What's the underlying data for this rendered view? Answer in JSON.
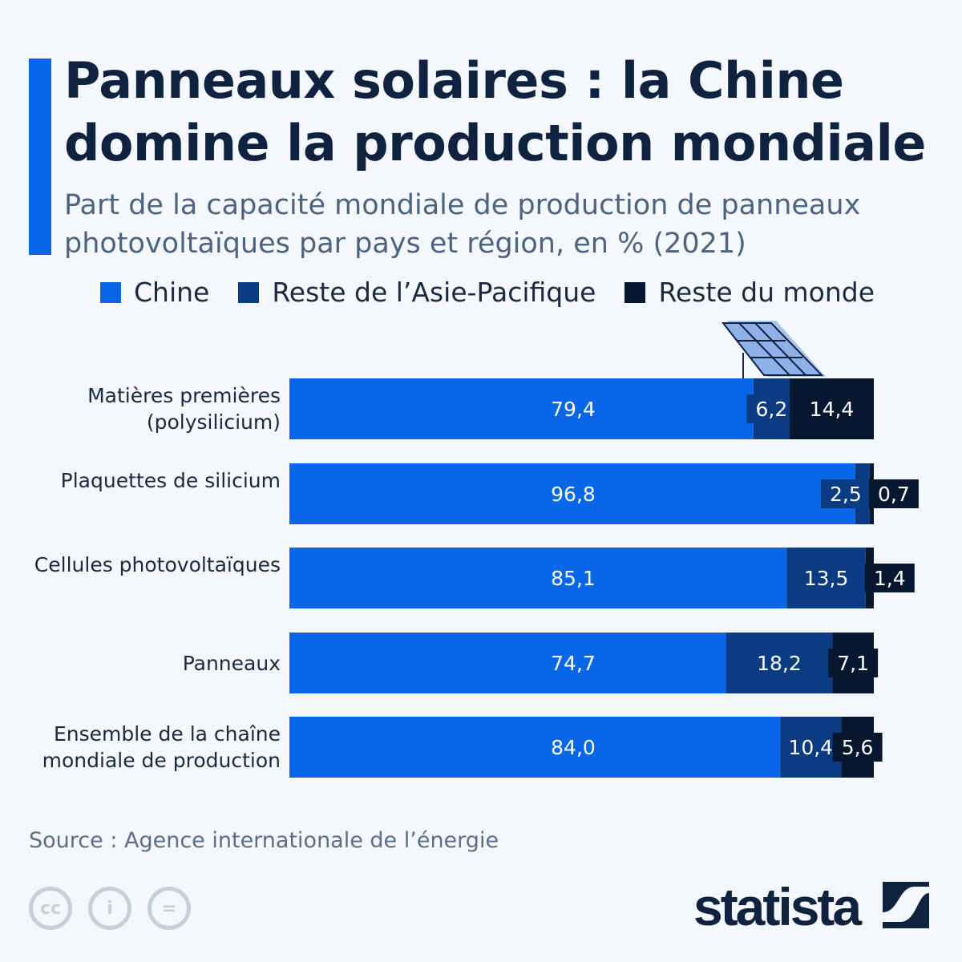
{
  "title": "Panneaux solaires : la Chine domine la production mondiale",
  "subtitle": "Part de la capacité mondiale de production de panneaux photovoltaïques par pays et région, en % (2021)",
  "source": "Source : Agence internationale de l’énergie",
  "brand": "statista",
  "license_icons": [
    "cc-icon",
    "by-icon",
    "nd-icon"
  ],
  "chart_data": {
    "type": "bar",
    "orientation": "horizontal",
    "stacked": true,
    "categories": [
      "Matières premières (polysilicium)",
      "Plaquettes de silicium",
      "Cellules photovoltaïques",
      "Panneaux",
      "Ensemble de la chaîne mondiale de production"
    ],
    "series": [
      {
        "name": "Chine",
        "color": "#0866e8",
        "values": [
          79.4,
          96.8,
          85.1,
          74.7,
          84.0
        ],
        "labels": [
          "79,4",
          "96,8",
          "85,1",
          "74,7",
          "84,0"
        ]
      },
      {
        "name": "Reste de l’Asie-Pacifique",
        "color": "#0b3b82",
        "values": [
          6.2,
          2.5,
          13.5,
          18.2,
          10.4
        ],
        "labels": [
          "6,2",
          "2,5",
          "13,5",
          "18,2",
          "10,4"
        ]
      },
      {
        "name": "Reste du monde",
        "color": "#071730",
        "values": [
          14.4,
          0.7,
          1.4,
          7.1,
          5.6
        ],
        "labels": [
          "14,4",
          "0,7",
          "1,4",
          "7,1",
          "5,6"
        ]
      }
    ],
    "xlim": [
      0,
      100
    ],
    "grid": false,
    "legend": "top"
  }
}
